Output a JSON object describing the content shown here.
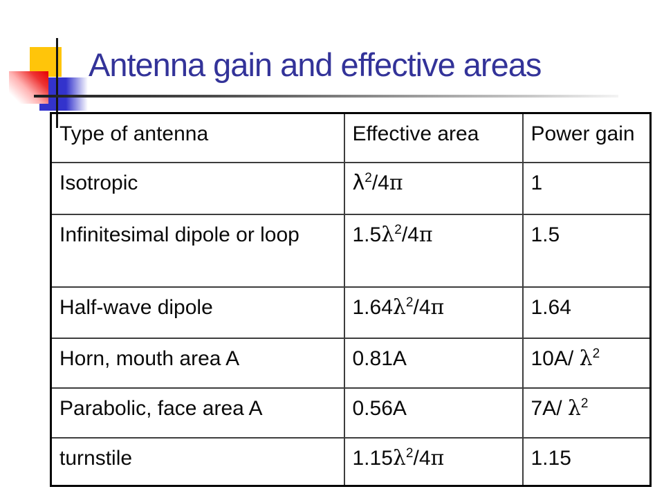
{
  "slide": {
    "title": "Antenna gain and effective areas"
  },
  "colors": {
    "title_text": "#333399",
    "decor_yellow": "#ffc50a",
    "decor_blue": "#3333cc",
    "decor_red": "#e60000",
    "table_border": "#000000"
  },
  "icons": {
    "decor_squares": "powerpoint-template-corner-ornament"
  },
  "table": {
    "rows": [
      {
        "antenna": {
          "pre": "Type of antenna"
        },
        "area": {
          "pre": "Effective area",
          "lam": "",
          "sup": "",
          "post": "",
          "pi": ""
        },
        "gain": {
          "pre": "Power gain",
          "lam": "",
          "sup": "",
          "post": "",
          "pi": ""
        }
      },
      {
        "antenna": {
          "pre": "Isotropic"
        },
        "area": {
          "pre": "",
          "lam": "λ",
          "sup": "2",
          "post": "/4",
          "pi": "π"
        },
        "gain": {
          "pre": "1",
          "lam": "",
          "sup": "",
          "post": "",
          "pi": ""
        }
      },
      {
        "antenna": {
          "pre": "Infinitesimal dipole or loop"
        },
        "area": {
          "pre": "1.5",
          "lam": "λ",
          "sup": "2",
          "post": "/4",
          "pi": "π"
        },
        "gain": {
          "pre": "1.5",
          "lam": "",
          "sup": "",
          "post": "",
          "pi": ""
        }
      },
      {
        "antenna": {
          "pre": "Half-wave dipole"
        },
        "area": {
          "pre": "1.64",
          "lam": "λ",
          "sup": "2",
          "post": "/4",
          "pi": "π"
        },
        "gain": {
          "pre": "1.64",
          "lam": "",
          "sup": "",
          "post": "",
          "pi": ""
        }
      },
      {
        "antenna": {
          "pre": "Horn, mouth area A"
        },
        "area": {
          "pre": "0.81A",
          "lam": "",
          "sup": "",
          "post": "",
          "pi": ""
        },
        "gain": {
          "pre": "10A/ ",
          "lam": "λ",
          "sup": "2",
          "post": "",
          "pi": ""
        }
      },
      {
        "antenna": {
          "pre": "Parabolic, face area A"
        },
        "area": {
          "pre": "0.56A",
          "lam": "",
          "sup": "",
          "post": "",
          "pi": ""
        },
        "gain": {
          "pre": "7A/ ",
          "lam": "λ",
          "sup": "2",
          "post": "",
          "pi": ""
        }
      },
      {
        "antenna": {
          "pre": "turnstile"
        },
        "area": {
          "pre": "1.15",
          "lam": "λ",
          "sup": "2",
          "post": "/4",
          "pi": "π"
        },
        "gain": {
          "pre": "1.15",
          "lam": "",
          "sup": "",
          "post": "",
          "pi": ""
        }
      }
    ]
  }
}
